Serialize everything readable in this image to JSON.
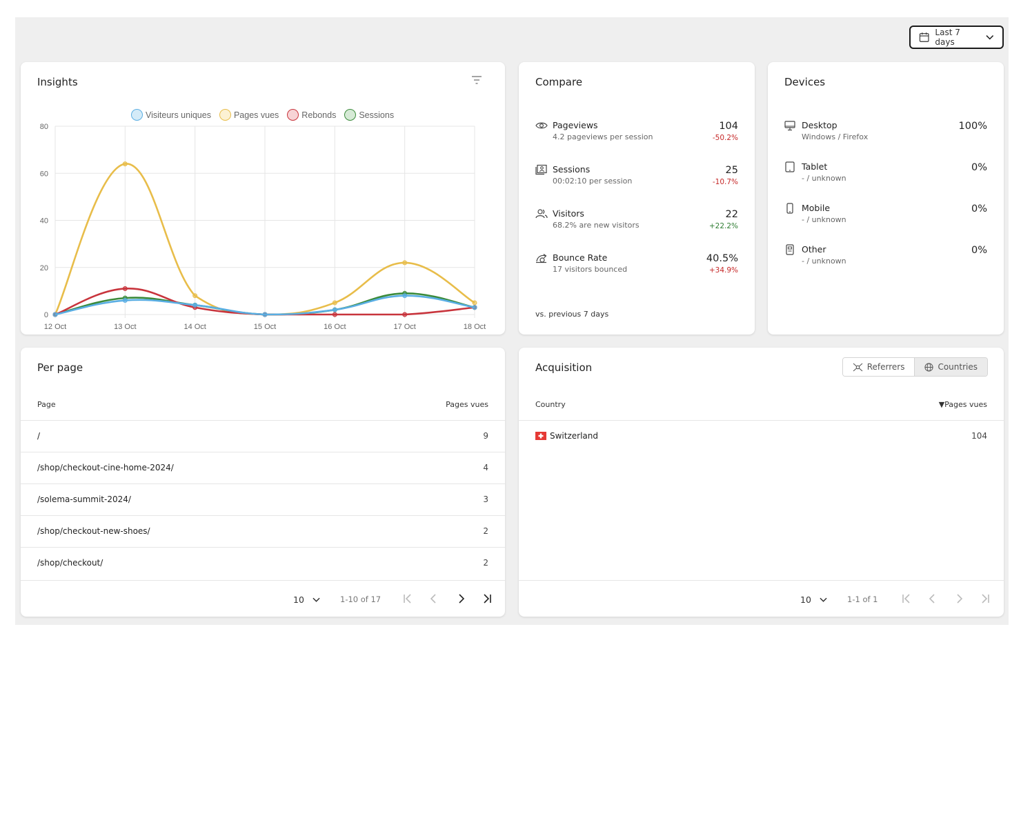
{
  "header": {
    "date_range_label": "Last 7 days"
  },
  "insights": {
    "title": "Insights",
    "legend": [
      {
        "name": "Visiteurs uniques",
        "color": "#5aaee3",
        "fill": "#d4ebf8"
      },
      {
        "name": "Pages vues",
        "color": "#e8bd4a",
        "fill": "#fcf1d3"
      },
      {
        "name": "Rebonds",
        "color": "#c8343c",
        "fill": "#f7d3d5"
      },
      {
        "name": "Sessions",
        "color": "#3a8a3a",
        "fill": "#d6ead6"
      }
    ]
  },
  "chart_data": {
    "type": "line",
    "x": [
      "12 Oct",
      "13 Oct",
      "14 Oct",
      "15 Oct",
      "16 Oct",
      "17 Oct",
      "18 Oct"
    ],
    "ylim": [
      0,
      80
    ],
    "yticks": [
      0,
      20,
      40,
      60,
      80
    ],
    "grid": true,
    "legend_position": "top",
    "series": [
      {
        "name": "Pages vues",
        "color": "#e8bd4a",
        "values": [
          0,
          64,
          8,
          0,
          5,
          22,
          5
        ]
      },
      {
        "name": "Sessions",
        "color": "#3a8a3a",
        "values": [
          0,
          7,
          4,
          0,
          2,
          9,
          3
        ]
      },
      {
        "name": "Rebonds",
        "color": "#c8343c",
        "values": [
          0,
          11,
          3,
          0,
          0,
          0,
          3
        ]
      },
      {
        "name": "Visiteurs uniques",
        "color": "#5aaee3",
        "values": [
          0,
          6,
          4,
          0,
          2,
          8,
          3
        ]
      }
    ]
  },
  "compare": {
    "title": "Compare",
    "metrics": [
      {
        "icon": "eye-icon",
        "name": "Pageviews",
        "sub": "4.2 pageviews per session",
        "value": "104",
        "delta": "-50.2%",
        "trend": "neg"
      },
      {
        "icon": "sessions-icon",
        "name": "Sessions",
        "sub": "00:02:10 per session",
        "value": "25",
        "delta": "-10.7%",
        "trend": "neg"
      },
      {
        "icon": "users-icon",
        "name": "Visitors",
        "sub": "68.2% are new visitors",
        "value": "22",
        "delta": "+22.2%",
        "trend": "pos"
      },
      {
        "icon": "bounce-icon",
        "name": "Bounce Rate",
        "sub": "17 visitors bounced",
        "value": "40.5%",
        "delta": "+34.9%",
        "trend": "neg"
      }
    ],
    "footer": "vs. previous 7 days"
  },
  "devices": {
    "title": "Devices",
    "items": [
      {
        "icon": "desktop-icon",
        "name": "Desktop",
        "sub": "Windows / Firefox",
        "value": "100%"
      },
      {
        "icon": "tablet-icon",
        "name": "Tablet",
        "sub": "- / unknown",
        "value": "0%"
      },
      {
        "icon": "mobile-icon",
        "name": "Mobile",
        "sub": "- / unknown",
        "value": "0%"
      },
      {
        "icon": "other-device-icon",
        "name": "Other",
        "sub": "- / unknown",
        "value": "0%"
      }
    ]
  },
  "per_page": {
    "title": "Per page",
    "columns": [
      "Page",
      "Pages vues"
    ],
    "rows": [
      [
        "/",
        "9"
      ],
      [
        "/shop/checkout-cine-home-2024/",
        "4"
      ],
      [
        "/solema-summit-2024/",
        "3"
      ],
      [
        "/shop/checkout-new-shoes/",
        "2"
      ],
      [
        "/shop/checkout/",
        "2"
      ]
    ],
    "page_size": "10",
    "range": "1-10 of 17"
  },
  "acquisition": {
    "title": "Acquisition",
    "tabs": [
      "Referrers",
      "Countries"
    ],
    "active_tab": "Countries",
    "columns": [
      "Country",
      "▼Pages vues"
    ],
    "rows": [
      {
        "flag": "switzerland-flag-icon",
        "country": "Switzerland",
        "value": "104"
      }
    ],
    "page_size": "10",
    "range": "1-1 of 1"
  }
}
